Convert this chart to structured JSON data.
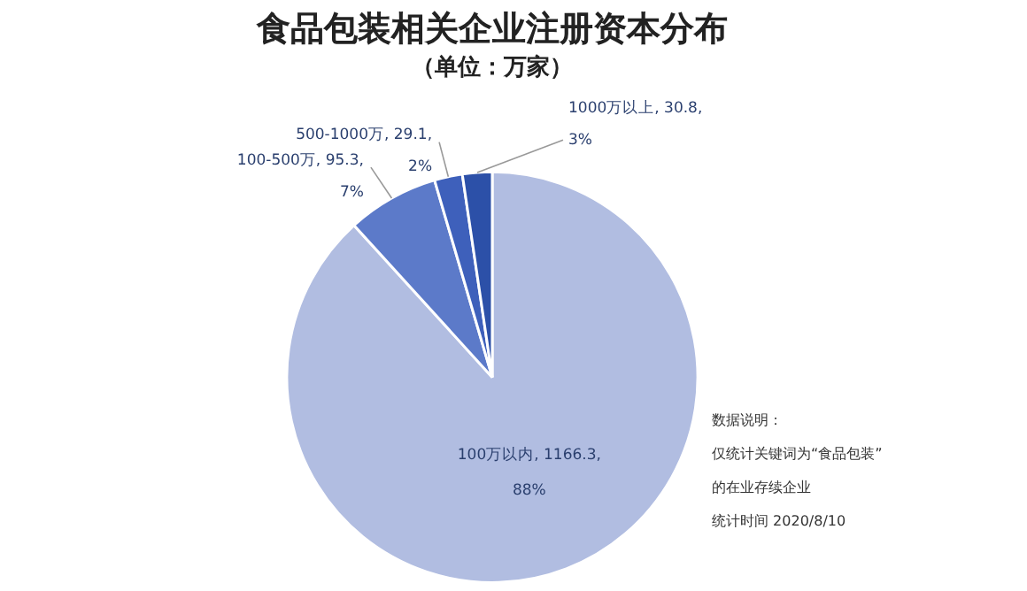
{
  "chart_data": {
    "type": "pie",
    "title": "食品包装相关企业注册资本分布",
    "subtitle": "（单位：万家）",
    "categories": [
      "100万以内",
      "100-500万",
      "500-1000万",
      "1000万以上"
    ],
    "values": [
      1166.3,
      95.3,
      29.1,
      30.8
    ],
    "value_labels": [
      "1166.3,\n88%",
      "95.3,\n7%",
      "29.1,\n2%",
      "30.8,\n3%"
    ],
    "colors": [
      "#b1bde1",
      "#5c7ac9",
      "#3e60bb",
      "#2c50a8"
    ],
    "legend": false,
    "annotations": [
      "数据说明：",
      "仅统计关键词为“食品包装”",
      "的在业存续企业",
      "统计时间 2020/8/10"
    ]
  }
}
